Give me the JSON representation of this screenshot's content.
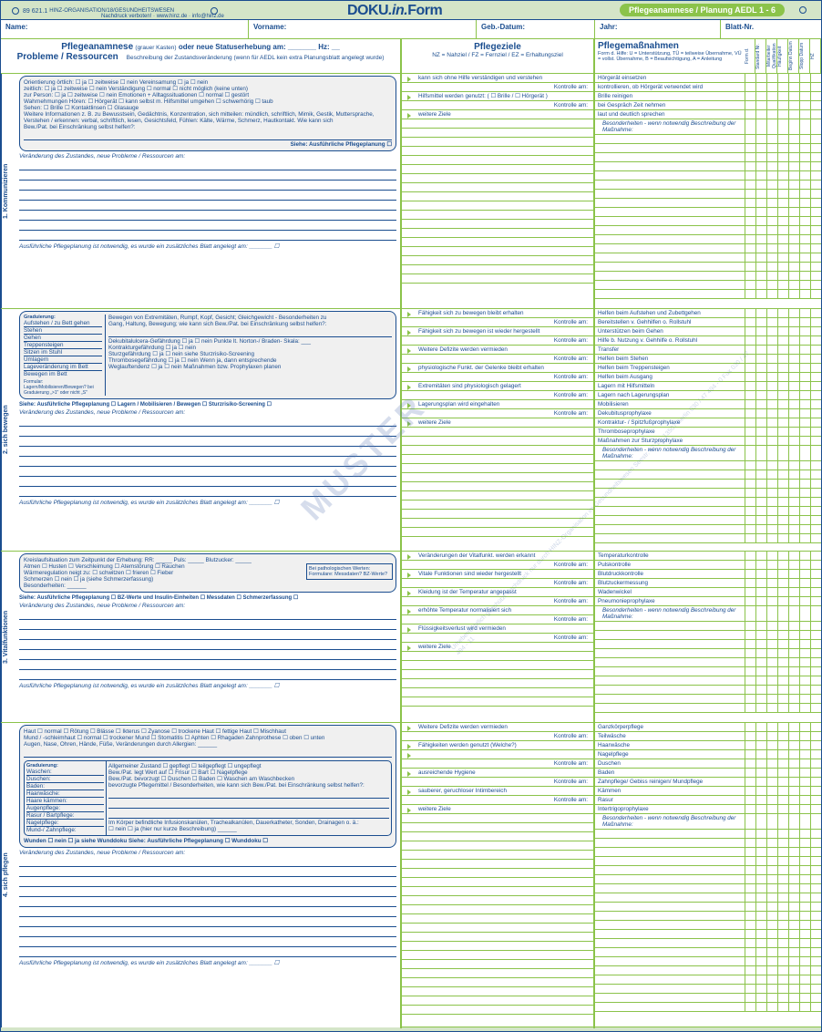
{
  "topbar": {
    "code": "89 621.1",
    "org": "HINZ-ORGANISATION/18/GESUNDHEITSWESEN",
    "copyright": "Nachdruck verboten! · www.hinz.de · info@hinz.de",
    "doku": "DOKU",
    "in": ".in.",
    "form": "Form",
    "badge": "Pflegeanamnese / Planung AEDL 1 - 6"
  },
  "header": {
    "name": "Name:",
    "vorname": "Vorname:",
    "gebdatum": "Geb.-Datum:",
    "jahr": "Jahr:",
    "blatt": "Blatt-Nr."
  },
  "col_left": {
    "title1": "Pflegeanamnese",
    "title1_sub": "(grauer Kasten)",
    "title2": "oder neue Statuserhebung am: _______ Hz: __",
    "title3": "Probleme / Ressourcen",
    "sub": "Beschreibung der Zustandsveränderung (wenn für AEDL kein extra Planungsblatt angelegt wurde)"
  },
  "col_mid": {
    "title": "Pflegeziele",
    "sub": "NZ = Nahziel / FZ = Fernziel / EZ = Erhaltungsziel"
  },
  "col_right": {
    "title": "Pflegemaßnahmen",
    "sub": "Form d. Hilfe: U = Unterstützung, TÜ = teilweise Übernahme, VÜ = vollst. Übernahme, B = Beaufsichtigung, A = Anleitung",
    "cols": [
      "Form d.",
      "Standard Nr.",
      "Mitarbeiter Qualifikation",
      "Häufigkeit",
      "Beginn Datum",
      "Stopp Datum",
      "HZ"
    ]
  },
  "aedl1": {
    "tab": "1. Kommunizieren",
    "lines": [
      "Orientierung   örtlich: ☐ ja    ☐ zeitweise  ☐ nein     Vereinsamung ☐ ja    ☐ nein",
      "                    zeitlich: ☐ ja    ☐ zeitweise  ☐ nein     Verständigung ☐ normal    ☐ nicht möglich (keine unten)",
      "          zur Person: ☐ ja    ☐ zeitweise  ☐ nein     Emotionen + Alltagssituationen ☐ normal    ☐ gestört",
      "Wahrnehmungen   Hören: ☐ Hörgerät  ☐ kann selbst m. Hilfsmittel umgehen  ☐ schwerhörig  ☐ taub",
      "                    Sehen: ☐ Brille    ☐ Kontaktlinsen    ☐ Glasauge",
      "Weitere Informationen z. B. zu Bewusstsein, Gedächtnis, Konzentration, sich mitteilen: mündlich, schriftlich, Mimik, Gestik, Muttersprache,",
      "Verstehen / erkennen: verbal, schriftlich, lesen, Gesichtsfeld, Fühlen: Kälte, Wärme, Schmerz, Hautkontakt. Wie kann sich",
      "Bew./Pat. bei Einschränkung selbst helfen?:"
    ],
    "siehe": "Siehe: Ausführliche Pflegeplanung ☐",
    "veraend": "Veränderung des Zustandes, neue Probleme / Ressourcen am:",
    "ausf": "Ausführliche Pflegeplanung ist notwendig, es wurde ein zusätzliches Blatt angelegt am: _______ ☐",
    "ziele": [
      "kann sich ohne Hilfe verständigen und verstehen",
      "Kontrolle am:",
      "Hilfsmittel werden genutzt: ( ☐ Brille / ☐ Hörgerät )",
      "Kontrolle am:",
      "weitere Ziele"
    ],
    "massn": [
      "Hörgerät einsetzen",
      "kontrollieren, ob Hörgerät verwendet wird",
      "Brille reinigen",
      "bei Gespräch Zeit nehmen",
      "laut und deutlich sprechen",
      "Besonderheiten - wenn notwendig Beschreibung der Maßnahme:"
    ]
  },
  "aedl2": {
    "tab": "2. sich bewegen",
    "grad": "Graduierung:",
    "grad_items": [
      "Aufstehen / zu Bett gehen",
      "Stehen",
      "Gehen",
      "Treppensteigen",
      "Sitzen im Stuhl",
      "Umlagern",
      "Lageveränderung im Bett",
      "Bewegen im Bett"
    ],
    "right_items": [
      "Bewegen von Extremitäten, Rumpf, Kopf, Gesicht; Gleichgewicht - Besonderheiten zu",
      "Gang, Haltung, Bewegung; wie kann sich Bew./Pat. bei Einschränkung selbst helfen?:",
      "",
      "Dekubitalulcera-Gefährdung  ☐ ja    ☐ nein  Punkte lt. Norton-/ Braden- Skala: ___",
      "Kontrakturgefährdung           ☐ ja    ☐ nein",
      "Sturzgefährdung                   ☐ ja    ☐ nein  siehe Sturzrisiko-Screening",
      "Thrombosegefährdung          ☐ ja    ☐ nein  Wenn ja, dann entsprechende",
      "Weglauftendenz                    ☐ ja    ☐ nein  Maßnahmen bzw. Prophylaxen planen"
    ],
    "formular": "Formular: Lagern/Mobilisieren/Bewegen? bei Graduierung „>1\" oder nicht „S\"",
    "siehe": "Siehe: Ausführliche Pflegeplanung ☐   Lagern / Mobilisieren / Bewegen ☐   Sturzrisiko-Screening ☐",
    "ziele": [
      "Fähigkeit sich zu bewegen bleibt erhalten",
      "Kontrolle am:",
      "Fähigkeit sich zu bewegen ist wieder hergestellt",
      "Kontrolle am:",
      "Weitere Defizite werden vermieden",
      "Kontrolle am:",
      "physiologische Funkt. der Gelenke bleibt erhalten",
      "Kontrolle am:",
      "Extremitäten sind physiologisch gelagert",
      "Kontrolle am:",
      "Lagerungsplan wird eingehalten",
      "Kontrolle am:",
      "weitere Ziele"
    ],
    "massn": [
      "Helfen beim Aufstehen und Zubettgehen",
      "Bereitstellen v. Gehhilfen o. Rollstuhl",
      "Unterstützen beim Gehen",
      "Hilfe b. Nutzung v. Gehhilfe o. Rollstuhl",
      "Transfer",
      "Helfen beim Stehen",
      "Helfen beim Treppensteigen",
      "Helfen beim Ausgang",
      "Lagern mit Hilfsmitteln",
      "Lagern nach Lagerungsplan",
      "Mobilisieren",
      "Dekubitusprophylaxe",
      "Kontraktur- / Spitzfußprophylaxe",
      "Thromboseprophylaxe",
      "Maßnahmen zur Sturzprophylaxe",
      "Besonderheiten - wenn notwendig Beschreibung der Maßnahme:"
    ]
  },
  "aedl3": {
    "tab": "3. Vitalfunktionen",
    "lines": [
      "Kreislaufsituation zum Zeitpunkt der Erhebung:  RR: _____    Puls: _____    Blutzucker: _____",
      "Atmen       ☐ Husten  ☐ Verschleimung  ☐ Atemstörung  ☐ Rauchen",
      "Wärmeregulation neigt zu:  ☐ schwitzen  ☐ frieren  ☐ Fieber",
      "Schmerzen      ☐ nein  ☐ ja (siehe Schmerzerfassung)",
      "Besonderheiten: ______"
    ],
    "patho": "Bei pathologischen Werten: Formulare: Messdaten? BZ-Werte?",
    "siehe": "Siehe: Ausführliche Pflegeplanung ☐  BZ-Werte und Insulin-Einheiten ☐  Messdaten ☐  Schmerzerfassung ☐",
    "ziele": [
      "Veränderungen der Vitalfunkt. werden erkannt",
      "Kontrolle am:",
      "Vitale Funktionen sind wieder hergestellt",
      "Kontrolle am:",
      "Kleidung ist der Temperatur angepasst",
      "Kontrolle am:",
      "erhöhte Temperatur normalisiert sich",
      "Kontrolle am:",
      "Flüssigkeitsverlust wird vermieden",
      "Kontrolle am:",
      "weitere Ziele"
    ],
    "massn": [
      "Temperaturkontrolle",
      "Pulskontrolle",
      "Blutdruckkontrolle",
      "Blutzuckermessung",
      "Wadenwickel",
      "Pneumonieprophylaxe",
      "Besonderheiten - wenn notwendig Beschreibung der Maßnahme:"
    ]
  },
  "aedl4": {
    "tab": "4. sich pflegen",
    "lines": [
      "Haut       ☐ normal  ☐ Rötung  ☐ Blässe  ☐ Ikterus  ☐ Zyanose  ☐ trockene Haut  ☐ fettige Haut  ☐ Mischhaut",
      "Mund / -schleimhaut  ☐ normal  ☐ trockener Mund  ☐ Stomatitis  ☐ Aphten  ☐ Rhagaden  Zahnprothese ☐ oben ☐ unten",
      "Augen, Nase, Ohren, Hände, Füße, Veränderungen durch Allergien: ______"
    ],
    "grad": "Graduierung:",
    "grad_items": [
      "Waschen:",
      "Duschen:",
      "Baden:",
      "Haarwäsche:",
      "Haare kämmen:",
      "Augenpflege:",
      "Rasur / Bartpflege:",
      "Nagelpflege:",
      "Mund-/ Zahnpflege:"
    ],
    "right_items": [
      "Allgemeiner Zustand    ☐ gepflegt    ☐ teilgepflegt    ☐ ungepflegt",
      "Bew./Pat. legt Wert auf  ☐ Frisur  ☐ Bart  ☐ Nagelpflege",
      "Bew./Pat. bevorzugt  ☐ Duschen  ☐ Baden  ☐ Waschen am Waschbecken",
      "bevorzugte Pflegemittel / Besonderheiten, wie kann sich Bew./Pat. bei Einschränkung selbst helfen?:",
      "",
      "",
      "",
      "Im Körper befindliche Infusionskanülen, Trachealkanülen, Dauerkatheter, Sonden, Drainagen o. ä.:",
      "☐ nein    ☐ ja (hier nur kurze Beschreibung) ______"
    ],
    "wunden": "Wunden ☐ nein  ☐ ja  siehe Wunddoku     Siehe:  Ausführliche Pflegeplanung ☐   Wunddoku ☐",
    "ziele": [
      "Weitere Defizite werden vermieden",
      "Kontrolle am:",
      "Fähigkeiten werden genutzt (Welche?)",
      "",
      "Kontrolle am:",
      "ausreichende Hygiene",
      "Kontrolle am:",
      "sauberer, geruchloser Intimbereich",
      "Kontrolle am:",
      "weitere Ziele"
    ],
    "massn": [
      "Ganzkörperpflege",
      "Teilwäsche",
      "Haarwäsche",
      "Nagelpflege",
      "Duschen",
      "Baden",
      "Zahnpflege/ Gebiss reinigen/ Mundpflege",
      "Kämmen",
      "Rasur",
      "Intertrigoprophylaxe",
      "Besonderheiten - wenn notwendig Beschreibung der Maßnahme:"
    ]
  },
  "watermark": "MUSTER",
  "watermark_sub": "Urheberrechtlich geschützt\nNachdruck nur durch\nHINZ-Organisation im Gesundheitswesen\nSeestr. 17-18, 13507 Berlin\n030 / 47 494 - 0\nFax 030 / 47 494 - 11"
}
